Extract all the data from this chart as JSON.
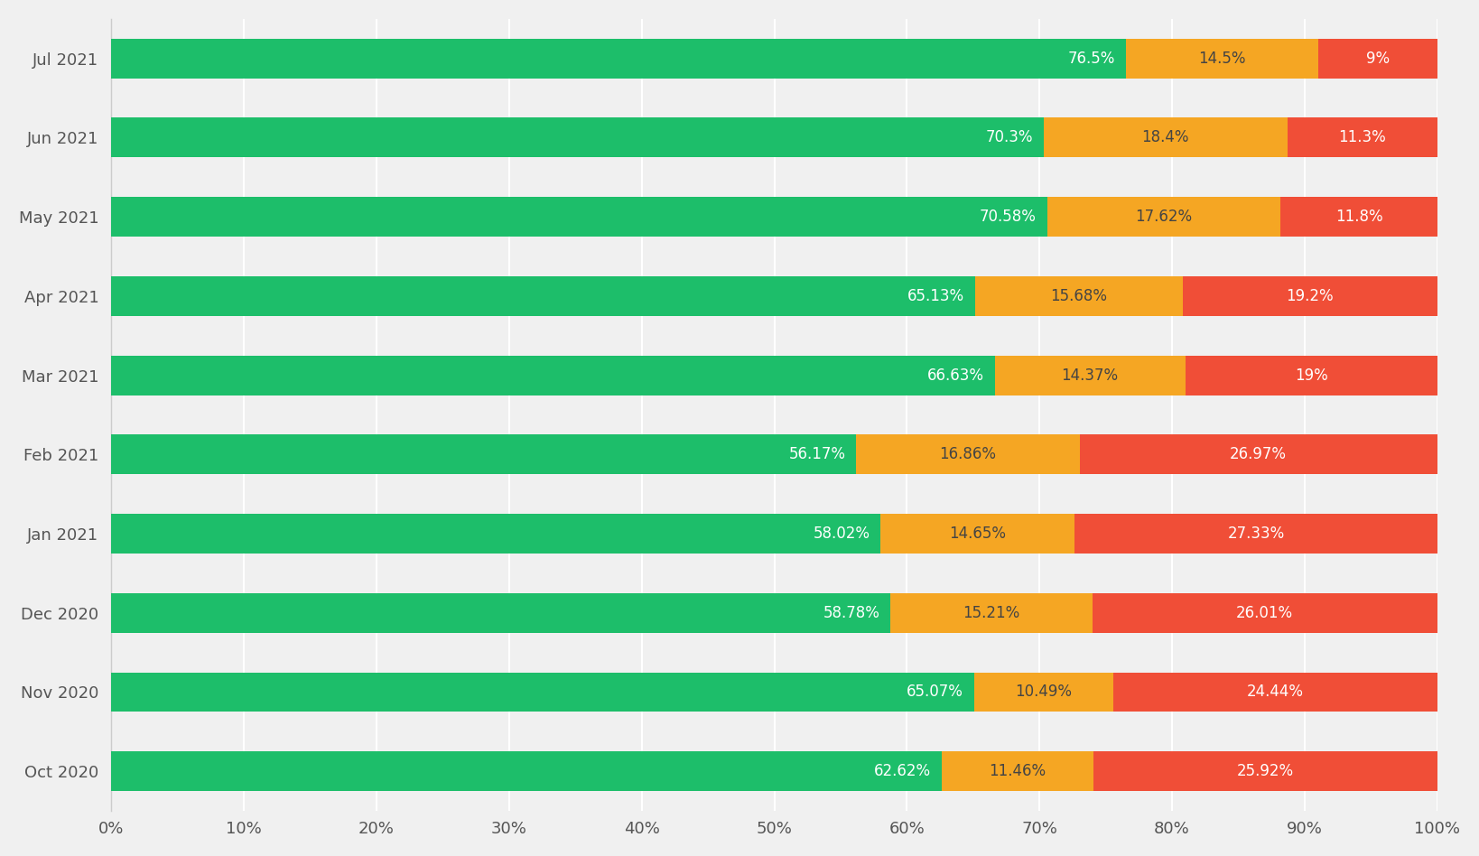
{
  "months": [
    "Oct 2020",
    "Nov 2020",
    "Dec 2020",
    "Jan 2021",
    "Feb 2021",
    "Mar 2021",
    "Apr 2021",
    "May 2021",
    "Jun 2021",
    "Jul 2021"
  ],
  "good": [
    62.62,
    65.07,
    58.78,
    58.02,
    56.17,
    66.63,
    65.13,
    70.58,
    70.3,
    76.5
  ],
  "needs_improvement": [
    11.46,
    10.49,
    15.21,
    14.65,
    16.86,
    14.37,
    15.68,
    17.62,
    18.4,
    14.5
  ],
  "poor": [
    25.92,
    24.44,
    26.01,
    27.33,
    26.97,
    19.0,
    19.2,
    11.8,
    11.3,
    9.0
  ],
  "good_labels": [
    "62.62%",
    "65.07%",
    "58.78%",
    "58.02%",
    "56.17%",
    "66.63%",
    "65.13%",
    "70.58%",
    "70.3%",
    "76.5%"
  ],
  "needs_improvement_labels": [
    "11.46%",
    "10.49%",
    "15.21%",
    "14.65%",
    "16.86%",
    "14.37%",
    "15.68%",
    "17.62%",
    "18.4%",
    "14.5%"
  ],
  "poor_labels": [
    "25.92%",
    "24.44%",
    "26.01%",
    "27.33%",
    "26.97%",
    "19%",
    "19.2%",
    "11.8%",
    "11.3%",
    "9%"
  ],
  "color_good": "#1dbe6a",
  "color_needs_improvement": "#f5a623",
  "color_poor": "#f04e37",
  "background_color": "#f0f0f0",
  "text_color_good": "#ffffff",
  "text_color_ni": "#444444",
  "text_color_poor": "#ffffff",
  "bar_height": 0.5,
  "label_fontsize": 12,
  "tick_fontsize": 13,
  "grid_color": "#ffffff",
  "axis_color": "#888888"
}
